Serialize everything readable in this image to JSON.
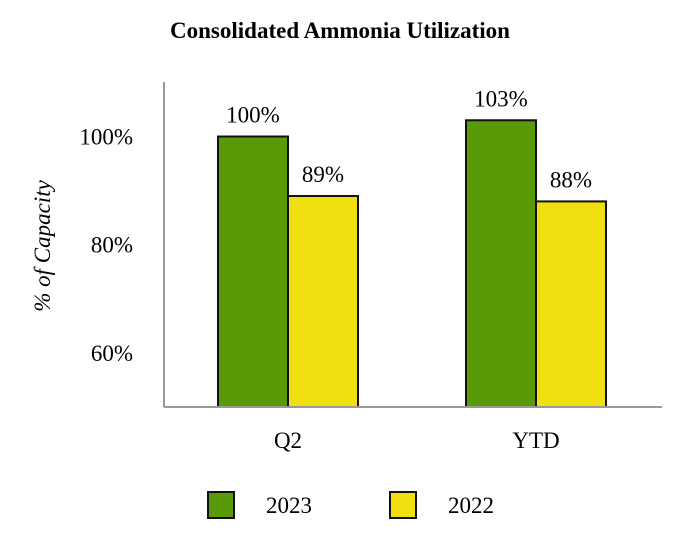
{
  "chart_data": {
    "type": "bar",
    "title": "Consolidated Ammonia Utilization",
    "xlabel": "",
    "ylabel": "% of Capacity",
    "categories": [
      "Q2",
      "YTD"
    ],
    "series": [
      {
        "name": "2023",
        "values": [
          100,
          103
        ],
        "labels": [
          "100%",
          "103%"
        ],
        "color": "#5a9a08"
      },
      {
        "name": "2022",
        "values": [
          89,
          88
        ],
        "labels": [
          "89%",
          "88%"
        ],
        "color": "#f0e012"
      }
    ],
    "yticks": [
      60,
      80,
      100
    ],
    "ytick_labels": [
      "60%",
      "80%",
      "100%"
    ],
    "ylim": [
      50,
      110
    ],
    "grid": false,
    "legend": "bottom-center"
  }
}
